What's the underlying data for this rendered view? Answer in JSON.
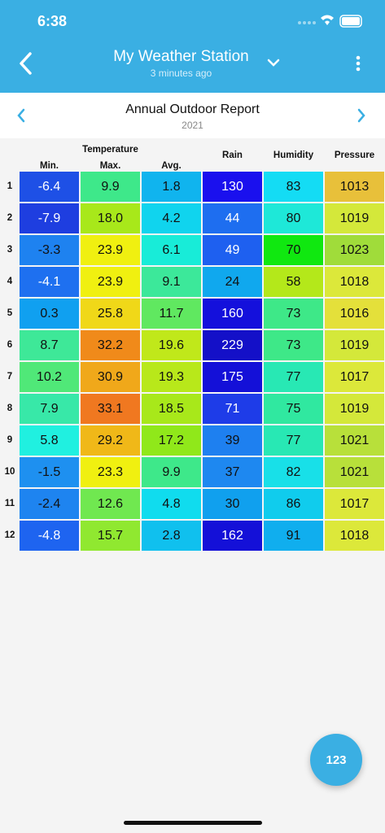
{
  "status_bar": {
    "time": "6:38"
  },
  "header": {
    "title": "My Weather Station",
    "subtitle": "3 minutes ago"
  },
  "report": {
    "title": "Annual Outdoor Report",
    "year": "2021"
  },
  "table": {
    "group_header": "Temperature",
    "columns": [
      "Min.",
      "Max.",
      "Avg.",
      "Rain",
      "Humidity",
      "Pressure"
    ],
    "rows": [
      {
        "label": "1",
        "values": [
          "-6.4",
          "9.9",
          "1.8",
          "130",
          "83",
          "1013"
        ],
        "colors": [
          "#1e50e6",
          "#3ee88a",
          "#10b4ee",
          "#1a10ee",
          "#14dcf4",
          "#e8c03a"
        ]
      },
      {
        "label": "2",
        "values": [
          "-7.9",
          "18.0",
          "4.2",
          "44",
          "80",
          "1019"
        ],
        "colors": [
          "#1e3ee0",
          "#a8e81a",
          "#10d4ee",
          "#1e6ef0",
          "#1ee8d8",
          "#d4e83a"
        ]
      },
      {
        "label": "3",
        "values": [
          "-3.3",
          "23.9",
          "6.1",
          "49",
          "70",
          "1023"
        ],
        "colors": [
          "#1e82f0",
          "#f0f010",
          "#18ecd8",
          "#1e60f0",
          "#10e810",
          "#a0dc3a"
        ]
      },
      {
        "label": "4",
        "values": [
          "-4.1",
          "23.9",
          "9.1",
          "24",
          "58",
          "1018"
        ],
        "colors": [
          "#1e70f0",
          "#f0f010",
          "#3ce89a",
          "#10a8ee",
          "#b4e81a",
          "#dce83a"
        ]
      },
      {
        "label": "5",
        "values": [
          "0.3",
          "25.8",
          "11.7",
          "160",
          "73",
          "1016"
        ],
        "colors": [
          "#10a0f0",
          "#f0d818",
          "#60e860",
          "#1410dc",
          "#3ee888",
          "#e4e03a"
        ]
      },
      {
        "label": "6",
        "values": [
          "8.7",
          "32.2",
          "19.6",
          "229",
          "73",
          "1019"
        ],
        "colors": [
          "#3ee898",
          "#f08a1a",
          "#c0e81a",
          "#1410c8",
          "#3ee888",
          "#d4e83a"
        ]
      },
      {
        "label": "7",
        "values": [
          "10.2",
          "30.9",
          "19.3",
          "175",
          "77",
          "1017"
        ],
        "colors": [
          "#50e878",
          "#f0a81a",
          "#b8e81a",
          "#1410d8",
          "#28e8b4",
          "#dce83a"
        ]
      },
      {
        "label": "8",
        "values": [
          "7.9",
          "33.1",
          "18.5",
          "71",
          "75",
          "1019"
        ],
        "colors": [
          "#38e8a8",
          "#f07820",
          "#a8e81a",
          "#1e3ce8",
          "#30e8a0",
          "#d4e83a"
        ]
      },
      {
        "label": "9",
        "values": [
          "5.8",
          "29.2",
          "17.2",
          "39",
          "77",
          "1021"
        ],
        "colors": [
          "#20f0e0",
          "#f0b818",
          "#90e81a",
          "#1e80f0",
          "#28e8b4",
          "#b8e03a"
        ]
      },
      {
        "label": "10",
        "values": [
          "-1.5",
          "23.3",
          "9.9",
          "37",
          "82",
          "1021"
        ],
        "colors": [
          "#1e90f0",
          "#f0f010",
          "#3ee88a",
          "#1e88f0",
          "#18e0e8",
          "#b8e03a"
        ]
      },
      {
        "label": "11",
        "values": [
          "-2.4",
          "12.6",
          "4.8",
          "30",
          "86",
          "1017"
        ],
        "colors": [
          "#1e84f0",
          "#70e850",
          "#10dcee",
          "#10a0ee",
          "#10cced",
          "#dce83a"
        ]
      },
      {
        "label": "12",
        "values": [
          "-4.8",
          "15.7",
          "2.8",
          "162",
          "91",
          "1018"
        ],
        "colors": [
          "#1e64f0",
          "#90e830",
          "#10c0ee",
          "#1410d8",
          "#10aeee",
          "#dce83a"
        ]
      }
    ]
  },
  "fab": {
    "label": "123"
  }
}
